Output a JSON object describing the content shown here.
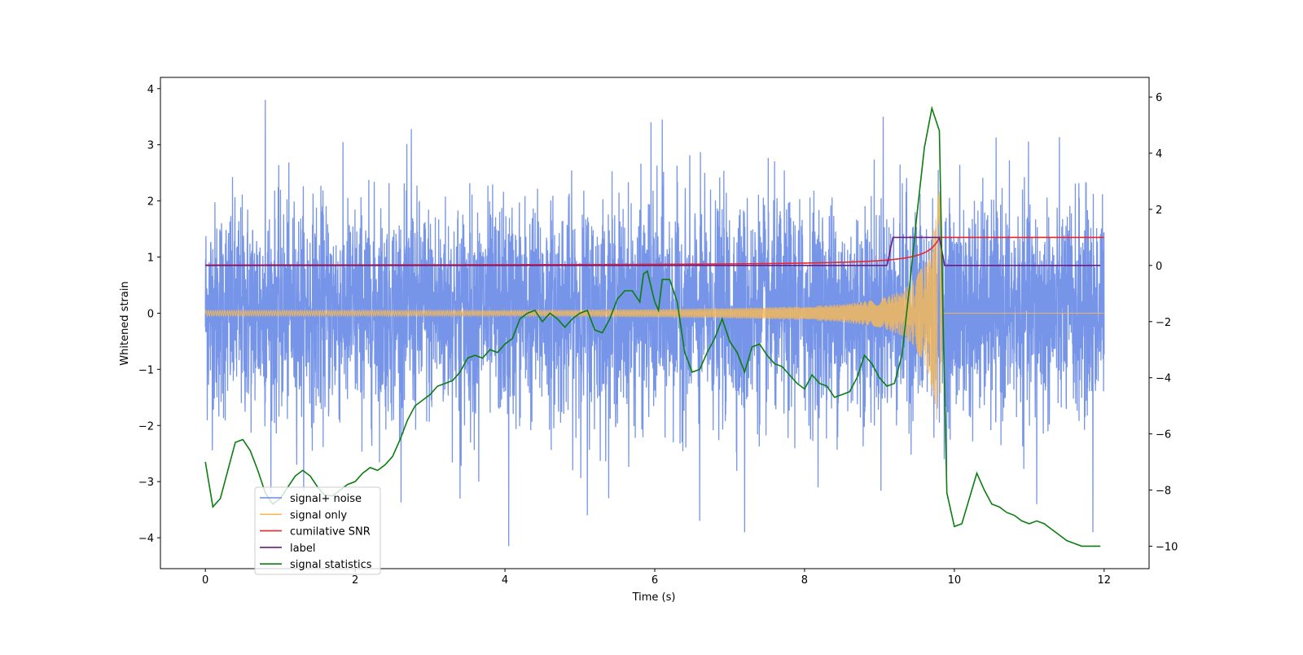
{
  "chart_data": {
    "type": "line",
    "title": "",
    "xlabel": "Time (s)",
    "ylabel": "Whitened strain",
    "y2label": "",
    "xlim": [
      -0.6,
      12.6
    ],
    "ylim": [
      -4.55,
      4.2
    ],
    "y2lim": [
      -10.8,
      6.7
    ],
    "xticks": [
      0,
      2,
      4,
      6,
      8,
      10,
      12
    ],
    "yticks": [
      -4,
      -3,
      -2,
      -1,
      0,
      1,
      2,
      3,
      4
    ],
    "y2ticks": [
      -10,
      -8,
      -6,
      -4,
      -2,
      0,
      2,
      4,
      6
    ],
    "xtick_labels": [
      "0",
      "2",
      "4",
      "6",
      "8",
      "10",
      "12"
    ],
    "ytick_labels": [
      "−4",
      "−3",
      "−2",
      "−1",
      "0",
      "1",
      "2",
      "3",
      "4"
    ],
    "y2tick_labels": [
      "−10",
      "−8",
      "−6",
      "−4",
      "−2",
      "0",
      "2",
      "4",
      "6"
    ],
    "grid": false,
    "legend_position": "lower-left",
    "series": [
      {
        "name": "signal+ noise",
        "axis": "left",
        "color": "#6a8be6",
        "description_values": "noise band approximately between -2.5 and 2.7 with spikes up to 3.8 and down to -4.2 over 0 to 12 s",
        "x_range": [
          0,
          12
        ],
        "spike_points": [
          [
            0.8,
            3.8
          ],
          [
            4.05,
            -4.15
          ],
          [
            6.1,
            3.45
          ],
          [
            5.95,
            3.4
          ],
          [
            3.4,
            -3.3
          ],
          [
            5.1,
            -3.6
          ],
          [
            6.6,
            -3.7
          ],
          [
            7.2,
            -3.9
          ],
          [
            11.85,
            -3.9
          ],
          [
            9.05,
            3.5
          ],
          [
            2.75,
            3.28
          ],
          [
            3.65,
            -3.0
          ],
          [
            11.1,
            -3.4
          ]
        ]
      },
      {
        "name": "signal only",
        "axis": "left",
        "color": "#f5b85c",
        "description_values": "chirp with amplitude ~0.05 growing to about ±2.4 at 9.8 s, zero after 9.85 s",
        "points": [
          [
            0,
            0.05
          ],
          [
            2,
            0.05
          ],
          [
            4,
            0.05
          ],
          [
            6,
            0.07
          ],
          [
            7,
            0.09
          ],
          [
            8,
            0.12
          ],
          [
            8.5,
            0.16
          ],
          [
            9.0,
            0.25
          ],
          [
            9.3,
            0.4
          ],
          [
            9.5,
            0.65
          ],
          [
            9.65,
            1.05
          ],
          [
            9.75,
            1.7
          ],
          [
            9.8,
            2.4
          ],
          [
            9.85,
            0.0
          ],
          [
            12,
            0.0
          ]
        ]
      },
      {
        "name": "cumilative SNR",
        "axis": "right",
        "color": "#e8262b",
        "points": [
          [
            0,
            0.0
          ],
          [
            2,
            0.05
          ],
          [
            4,
            0.1
          ],
          [
            6,
            0.17
          ],
          [
            7,
            0.22
          ],
          [
            8,
            0.3
          ],
          [
            8.5,
            0.38
          ],
          [
            9.0,
            0.5
          ],
          [
            9.3,
            0.62
          ],
          [
            9.5,
            0.75
          ],
          [
            9.65,
            0.9
          ],
          [
            9.75,
            1.0
          ],
          [
            9.8,
            1.0
          ],
          [
            12,
            1.0
          ]
        ]
      },
      {
        "name": "label",
        "axis": "right",
        "color": "#6b1d84",
        "points": [
          [
            0,
            0
          ],
          [
            9.1,
            0
          ],
          [
            9.18,
            1
          ],
          [
            9.8,
            1
          ],
          [
            9.87,
            0
          ],
          [
            11.95,
            0
          ]
        ]
      },
      {
        "name": "signal statistics",
        "axis": "right",
        "color": "#0c7d10",
        "points": [
          [
            0,
            -7.0
          ],
          [
            0.1,
            -8.6
          ],
          [
            0.2,
            -8.3
          ],
          [
            0.3,
            -7.3
          ],
          [
            0.4,
            -6.3
          ],
          [
            0.5,
            -6.2
          ],
          [
            0.6,
            -6.6
          ],
          [
            0.7,
            -7.3
          ],
          [
            0.8,
            -8.1
          ],
          [
            0.9,
            -8.5
          ],
          [
            1.0,
            -8.3
          ],
          [
            1.1,
            -7.9
          ],
          [
            1.2,
            -7.5
          ],
          [
            1.3,
            -7.3
          ],
          [
            1.4,
            -7.5
          ],
          [
            1.5,
            -7.9
          ],
          [
            1.6,
            -8.2
          ],
          [
            1.7,
            -8.2
          ],
          [
            1.8,
            -8.0
          ],
          [
            1.9,
            -7.8
          ],
          [
            2.0,
            -7.7
          ],
          [
            2.1,
            -7.4
          ],
          [
            2.2,
            -7.2
          ],
          [
            2.3,
            -7.3
          ],
          [
            2.4,
            -7.1
          ],
          [
            2.5,
            -6.8
          ],
          [
            2.6,
            -6.2
          ],
          [
            2.7,
            -5.5
          ],
          [
            2.8,
            -5.0
          ],
          [
            2.9,
            -4.8
          ],
          [
            3.0,
            -4.6
          ],
          [
            3.1,
            -4.3
          ],
          [
            3.2,
            -4.2
          ],
          [
            3.3,
            -4.1
          ],
          [
            3.4,
            -3.8
          ],
          [
            3.5,
            -3.3
          ],
          [
            3.6,
            -3.2
          ],
          [
            3.7,
            -3.3
          ],
          [
            3.8,
            -3.0
          ],
          [
            3.9,
            -3.1
          ],
          [
            4.0,
            -2.8
          ],
          [
            4.1,
            -2.6
          ],
          [
            4.2,
            -1.9
          ],
          [
            4.3,
            -1.7
          ],
          [
            4.4,
            -1.6
          ],
          [
            4.5,
            -2.0
          ],
          [
            4.6,
            -1.7
          ],
          [
            4.7,
            -1.9
          ],
          [
            4.8,
            -2.2
          ],
          [
            4.9,
            -1.9
          ],
          [
            5.0,
            -1.7
          ],
          [
            5.1,
            -1.6
          ],
          [
            5.2,
            -2.3
          ],
          [
            5.3,
            -2.4
          ],
          [
            5.4,
            -1.9
          ],
          [
            5.5,
            -1.2
          ],
          [
            5.6,
            -0.9
          ],
          [
            5.7,
            -0.9
          ],
          [
            5.8,
            -1.3
          ],
          [
            5.85,
            -0.3
          ],
          [
            5.9,
            -0.2
          ],
          [
            6.0,
            -1.3
          ],
          [
            6.05,
            -1.6
          ],
          [
            6.1,
            -0.5
          ],
          [
            6.2,
            -0.5
          ],
          [
            6.3,
            -1.3
          ],
          [
            6.4,
            -3.1
          ],
          [
            6.5,
            -3.8
          ],
          [
            6.6,
            -3.7
          ],
          [
            6.7,
            -3.1
          ],
          [
            6.8,
            -2.6
          ],
          [
            6.9,
            -1.9
          ],
          [
            7.0,
            -2.7
          ],
          [
            7.1,
            -3.1
          ],
          [
            7.2,
            -3.8
          ],
          [
            7.3,
            -2.9
          ],
          [
            7.4,
            -2.8
          ],
          [
            7.5,
            -3.2
          ],
          [
            7.6,
            -3.5
          ],
          [
            7.7,
            -3.6
          ],
          [
            7.8,
            -3.9
          ],
          [
            7.9,
            -4.2
          ],
          [
            8.0,
            -4.4
          ],
          [
            8.1,
            -3.9
          ],
          [
            8.2,
            -4.2
          ],
          [
            8.3,
            -4.3
          ],
          [
            8.4,
            -4.7
          ],
          [
            8.5,
            -4.6
          ],
          [
            8.6,
            -4.5
          ],
          [
            8.7,
            -4.0
          ],
          [
            8.8,
            -3.2
          ],
          [
            8.9,
            -3.5
          ],
          [
            9.0,
            -4.0
          ],
          [
            9.1,
            -4.3
          ],
          [
            9.2,
            -4.2
          ],
          [
            9.3,
            -3.2
          ],
          [
            9.4,
            -0.8
          ],
          [
            9.5,
            1.8
          ],
          [
            9.6,
            4.2
          ],
          [
            9.7,
            5.6
          ],
          [
            9.8,
            4.8
          ],
          [
            9.85,
            -2.0
          ],
          [
            9.9,
            -8.1
          ],
          [
            10.0,
            -9.3
          ],
          [
            10.1,
            -9.2
          ],
          [
            10.2,
            -8.3
          ],
          [
            10.3,
            -7.4
          ],
          [
            10.4,
            -8.0
          ],
          [
            10.5,
            -8.5
          ],
          [
            10.6,
            -8.6
          ],
          [
            10.7,
            -8.8
          ],
          [
            10.8,
            -8.9
          ],
          [
            10.9,
            -9.1
          ],
          [
            11.0,
            -9.2
          ],
          [
            11.1,
            -9.1
          ],
          [
            11.2,
            -9.2
          ],
          [
            11.3,
            -9.4
          ],
          [
            11.4,
            -9.6
          ],
          [
            11.5,
            -9.8
          ],
          [
            11.6,
            -9.9
          ],
          [
            11.7,
            -10.0
          ],
          [
            11.8,
            -10.0
          ],
          [
            11.95,
            -10.0
          ]
        ]
      }
    ]
  }
}
